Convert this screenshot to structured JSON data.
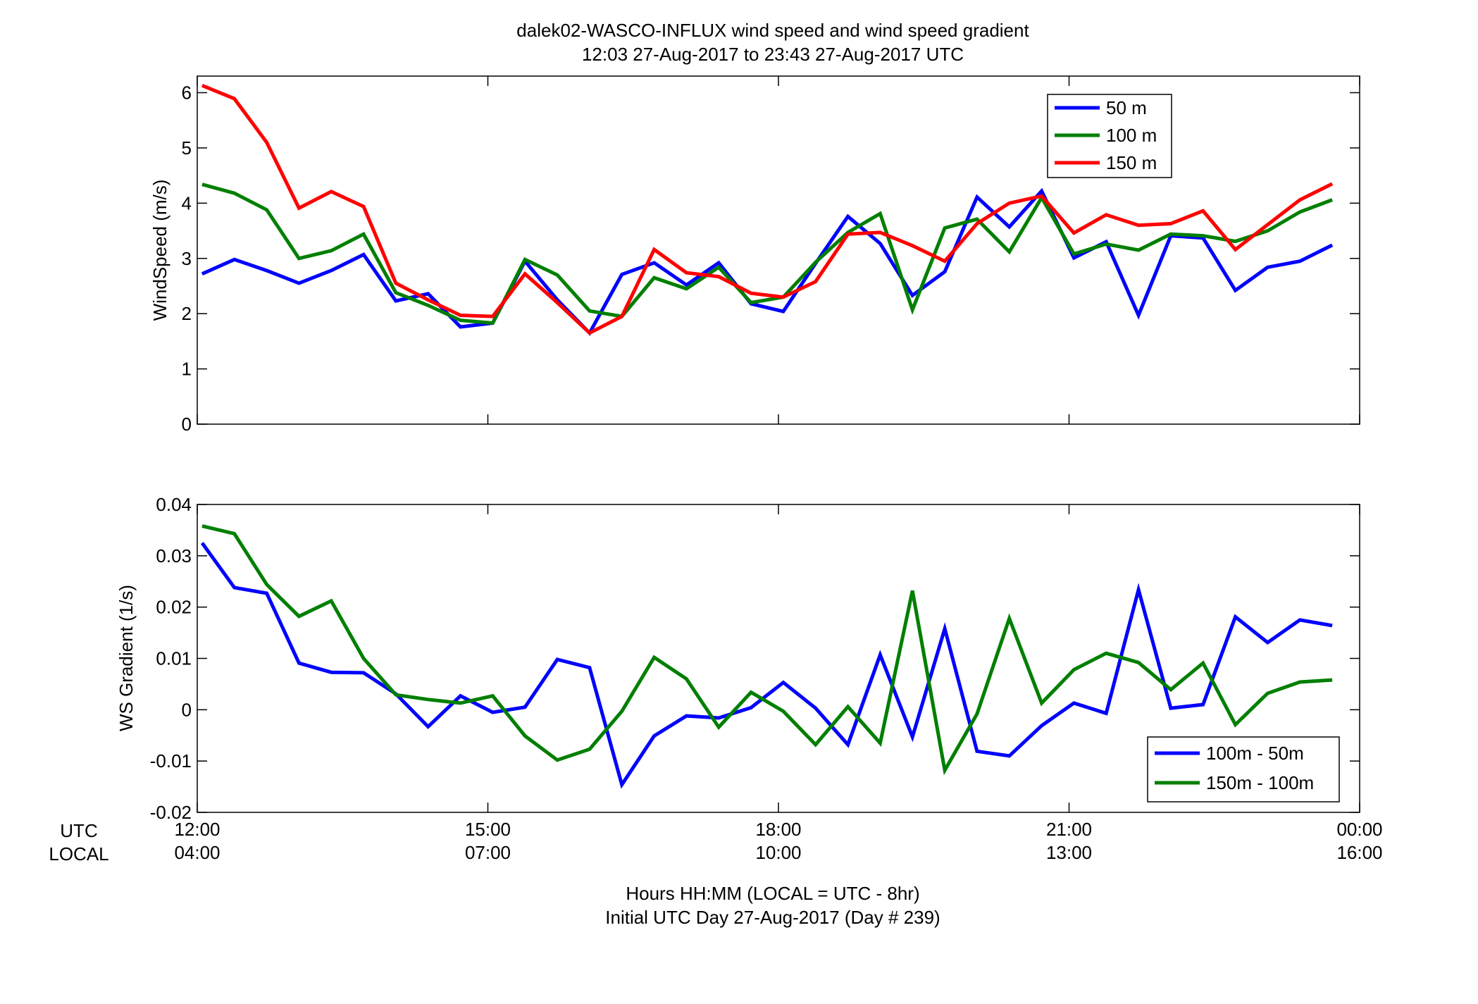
{
  "figure": {
    "title_line1": "dalek02-WASCO-INFLUX  wind speed and wind speed gradient",
    "title_line2": "12:03 27-Aug-2017 to 23:43 27-Aug-2017  UTC",
    "xlabel_line1": "Hours HH:MM  (LOCAL = UTC - 8hr)",
    "xlabel_line2": "Initial UTC Day 27-Aug-2017 (Day # 239)",
    "row_label_utc": "UTC",
    "row_label_local": "LOCAL"
  },
  "x_ticks": {
    "hours": [
      12,
      15,
      18,
      21,
      24
    ],
    "utc_labels": [
      "12:00",
      "15:00",
      "18:00",
      "21:00",
      "00:00"
    ],
    "local_labels": [
      "04:00",
      "07:00",
      "10:00",
      "13:00",
      "16:00"
    ]
  },
  "colors": {
    "blue": "#0000ff",
    "green": "#007f00",
    "red": "#ff0000"
  },
  "chart_data": [
    {
      "type": "line",
      "title": "",
      "ylabel": "WindSpeed (m/s)",
      "x_units": "UTC hours (27-Aug-2017)",
      "xlim": [
        12,
        24
      ],
      "ylim": [
        0,
        6.3
      ],
      "yticks": [
        0,
        1,
        2,
        3,
        4,
        5,
        6
      ],
      "ytick_labels": [
        "0",
        "1",
        "2",
        "3",
        "4",
        "5",
        "6"
      ],
      "grid": false,
      "legend": "top-right",
      "x": [
        12.05,
        12.383,
        12.717,
        13.05,
        13.383,
        13.717,
        14.05,
        14.383,
        14.717,
        15.05,
        15.383,
        15.717,
        16.05,
        16.383,
        16.717,
        17.05,
        17.383,
        17.717,
        18.05,
        18.383,
        18.717,
        19.05,
        19.383,
        19.717,
        20.05,
        20.383,
        20.717,
        21.05,
        21.383,
        21.717,
        22.05,
        22.383,
        22.717,
        23.05,
        23.383,
        23.717
      ],
      "series": [
        {
          "name": "50 m",
          "color": "#0000ff",
          "values": [
            2.72,
            2.98,
            2.78,
            2.55,
            2.78,
            3.07,
            2.23,
            2.36,
            1.76,
            1.83,
            2.95,
            2.25,
            1.65,
            2.71,
            2.92,
            2.52,
            2.92,
            2.18,
            2.04,
            2.91,
            3.76,
            3.27,
            2.33,
            2.76,
            4.11,
            3.57,
            4.22,
            3.01,
            3.3,
            1.97,
            3.41,
            3.37,
            2.42,
            2.84,
            2.95,
            3.24
          ]
        },
        {
          "name": "100 m",
          "color": "#007f00",
          "values": [
            4.34,
            4.18,
            3.88,
            3.0,
            3.14,
            3.44,
            2.38,
            2.15,
            1.88,
            1.83,
            2.98,
            2.7,
            2.05,
            1.95,
            2.65,
            2.45,
            2.84,
            2.2,
            2.3,
            2.93,
            3.47,
            3.81,
            2.07,
            3.55,
            3.71,
            3.12,
            4.1,
            3.08,
            3.26,
            3.15,
            3.44,
            3.41,
            3.31,
            3.5,
            3.84,
            4.06
          ]
        },
        {
          "name": "150 m",
          "color": "#ff0000",
          "values": [
            6.13,
            5.89,
            5.1,
            3.91,
            4.21,
            3.94,
            2.55,
            2.25,
            1.97,
            1.95,
            2.72,
            2.2,
            1.65,
            1.95,
            3.16,
            2.74,
            2.67,
            2.37,
            2.3,
            2.58,
            3.44,
            3.47,
            3.23,
            2.95,
            3.63,
            4.0,
            4.13,
            3.46,
            3.79,
            3.6,
            3.63,
            3.86,
            3.16,
            3.61,
            4.06,
            4.35
          ]
        }
      ]
    },
    {
      "type": "line",
      "title": "",
      "ylabel": "WS Gradient (1/s)",
      "x_units": "UTC hours (27-Aug-2017)",
      "xlim": [
        12,
        24
      ],
      "ylim": [
        -0.02,
        0.04
      ],
      "yticks": [
        -0.02,
        -0.01,
        0,
        0.01,
        0.02,
        0.03,
        0.04
      ],
      "ytick_labels": [
        "-0.02",
        "-0.01",
        "0",
        "0.01",
        "0.02",
        "0.03",
        "0.04"
      ],
      "grid": false,
      "legend": "bottom-right",
      "x": [
        12.05,
        12.383,
        12.717,
        13.05,
        13.383,
        13.717,
        14.05,
        14.383,
        14.717,
        15.05,
        15.383,
        15.717,
        16.05,
        16.383,
        16.717,
        17.05,
        17.383,
        17.717,
        18.05,
        18.383,
        18.717,
        19.05,
        19.383,
        19.717,
        20.05,
        20.383,
        20.717,
        21.05,
        21.383,
        21.717,
        22.05,
        22.383,
        22.717,
        23.05,
        23.383,
        23.717
      ],
      "series": [
        {
          "name": "100m - 50m",
          "color": "#0000ff",
          "values": [
            0.0325,
            0.0238,
            0.0227,
            0.0091,
            0.0073,
            0.0072,
            0.0031,
            -0.0033,
            0.0027,
            -0.0005,
            0.0005,
            0.0098,
            0.0082,
            -0.0146,
            -0.0051,
            -0.0012,
            -0.0016,
            0.0004,
            0.0053,
            0.0003,
            -0.0068,
            0.0107,
            -0.0053,
            0.0158,
            -0.0081,
            -0.009,
            -0.0031,
            0.0013,
            -0.0007,
            0.0234,
            0.0003,
            0.001,
            0.0181,
            0.0131,
            0.0175,
            0.0164
          ]
        },
        {
          "name": "150m - 100m",
          "color": "#007f00",
          "values": [
            0.0358,
            0.0343,
            0.0244,
            0.0182,
            0.0212,
            0.01,
            0.0029,
            0.002,
            0.0013,
            0.0027,
            -0.0051,
            -0.0098,
            -0.0077,
            -0.0003,
            0.0102,
            0.006,
            -0.0034,
            0.0034,
            -0.0003,
            -0.0068,
            0.0006,
            -0.0065,
            0.0232,
            -0.0118,
            -0.0008,
            0.0178,
            0.0013,
            0.0078,
            0.011,
            0.0092,
            0.0039,
            0.0091,
            -0.0029,
            0.0032,
            0.0054,
            0.0058
          ]
        }
      ]
    }
  ]
}
